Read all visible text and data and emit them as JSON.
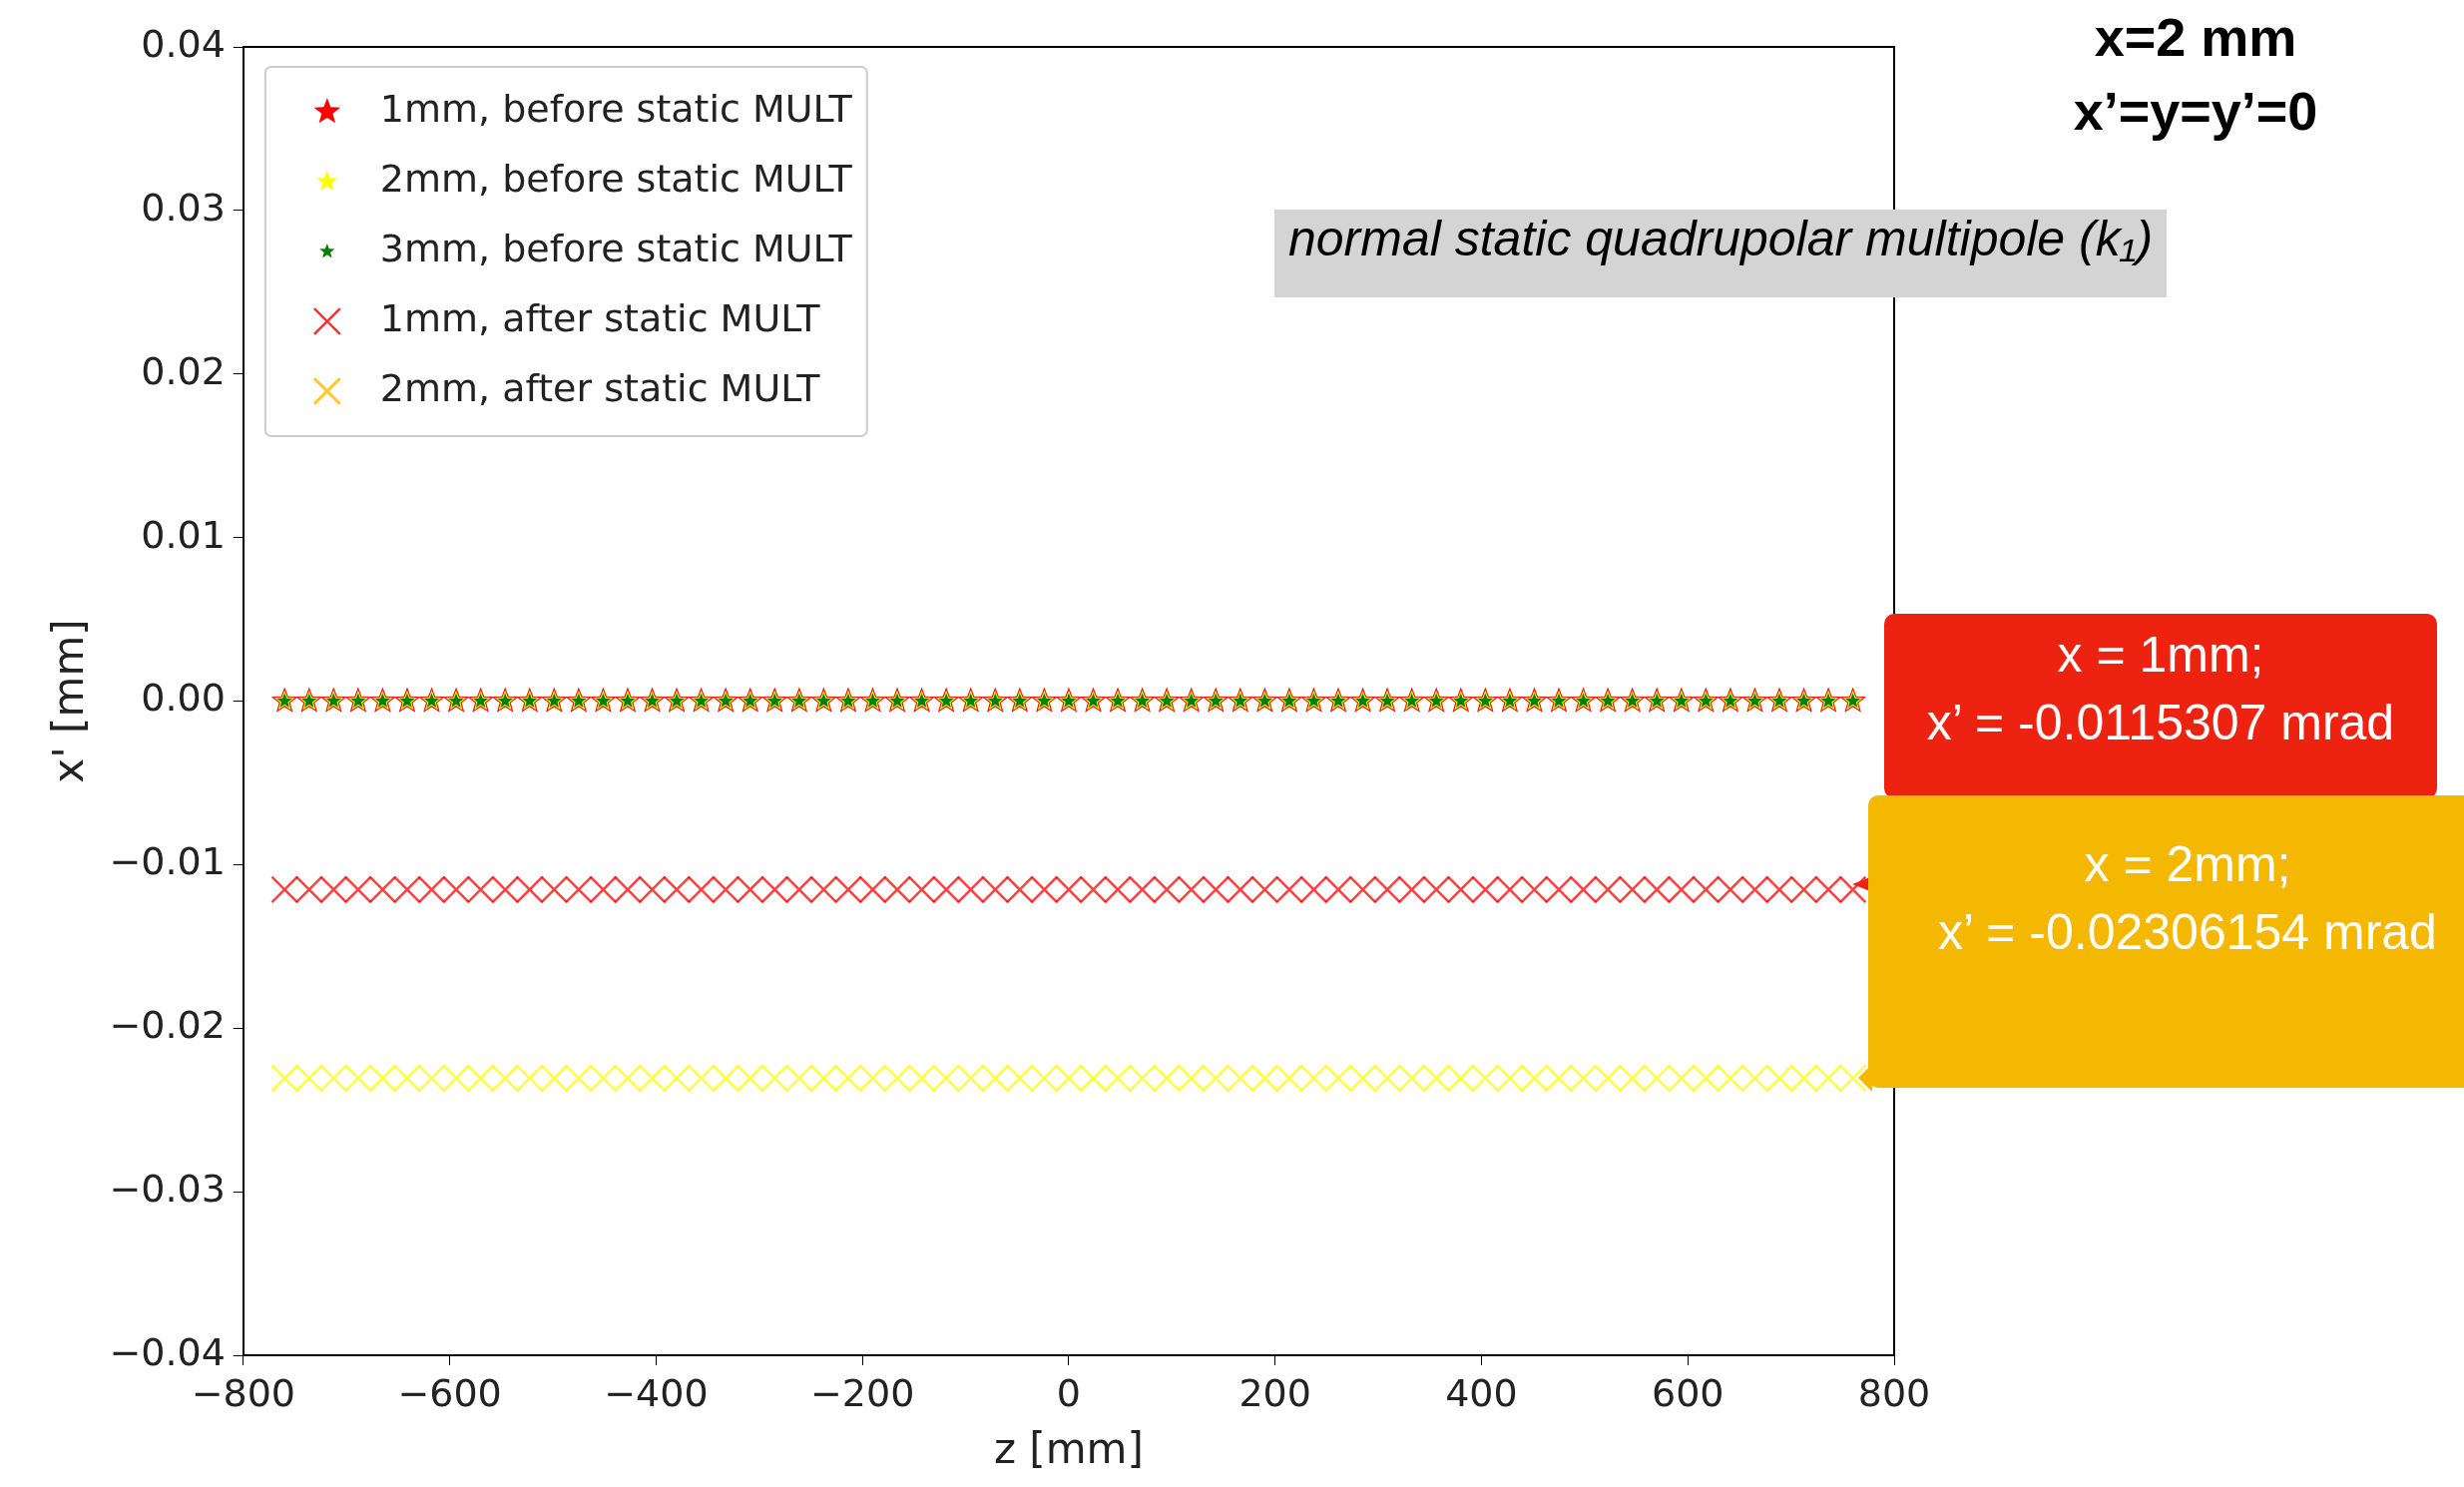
{
  "chart_data": {
    "type": "scatter",
    "xlabel": "z [mm]",
    "ylabel": "x' [mm]",
    "x": [
      -760,
      -736.25,
      -712.5,
      -688.75,
      -665,
      -641.25,
      -617.5,
      -593.75,
      -570,
      -546.25,
      -522.5,
      -498.75,
      -475,
      -451.25,
      -427.5,
      -403.75,
      -380,
      -356.25,
      -332.5,
      -308.75,
      -285,
      -261.25,
      -237.5,
      -213.75,
      -190,
      -166.25,
      -142.5,
      -118.75,
      -95,
      -71.25,
      -47.5,
      -23.75,
      0,
      23.75,
      47.5,
      71.25,
      95,
      118.75,
      142.5,
      166.25,
      190,
      213.75,
      237.5,
      261.25,
      285,
      308.75,
      332.5,
      356.25,
      380,
      403.75,
      427.5,
      451.25,
      475,
      498.75,
      522.5,
      546.25,
      570,
      593.75,
      617.5,
      641.25,
      665,
      688.75,
      712.5,
      736.25,
      760
    ],
    "series": [
      {
        "name": "1mm, before static MULT",
        "color": "#ff0000",
        "marker": "star",
        "values": [
          0,
          0,
          0,
          0,
          0,
          0,
          0,
          0,
          0,
          0,
          0,
          0,
          0,
          0,
          0,
          0,
          0,
          0,
          0,
          0,
          0,
          0,
          0,
          0,
          0,
          0,
          0,
          0,
          0,
          0,
          0,
          0,
          0,
          0,
          0,
          0,
          0,
          0,
          0,
          0,
          0,
          0,
          0,
          0,
          0,
          0,
          0,
          0,
          0,
          0,
          0,
          0,
          0,
          0,
          0,
          0,
          0,
          0,
          0,
          0,
          0,
          0,
          0,
          0,
          0
        ]
      },
      {
        "name": "2mm, before static MULT",
        "color": "#ffff00",
        "marker": "star",
        "values": [
          0,
          0,
          0,
          0,
          0,
          0,
          0,
          0,
          0,
          0,
          0,
          0,
          0,
          0,
          0,
          0,
          0,
          0,
          0,
          0,
          0,
          0,
          0,
          0,
          0,
          0,
          0,
          0,
          0,
          0,
          0,
          0,
          0,
          0,
          0,
          0,
          0,
          0,
          0,
          0,
          0,
          0,
          0,
          0,
          0,
          0,
          0,
          0,
          0,
          0,
          0,
          0,
          0,
          0,
          0,
          0,
          0,
          0,
          0,
          0,
          0,
          0,
          0,
          0,
          0
        ]
      },
      {
        "name": "3mm, before static MULT",
        "color": "#008000",
        "marker": "star",
        "values": [
          0,
          0,
          0,
          0,
          0,
          0,
          0,
          0,
          0,
          0,
          0,
          0,
          0,
          0,
          0,
          0,
          0,
          0,
          0,
          0,
          0,
          0,
          0,
          0,
          0,
          0,
          0,
          0,
          0,
          0,
          0,
          0,
          0,
          0,
          0,
          0,
          0,
          0,
          0,
          0,
          0,
          0,
          0,
          0,
          0,
          0,
          0,
          0,
          0,
          0,
          0,
          0,
          0,
          0,
          0,
          0,
          0,
          0,
          0,
          0,
          0,
          0,
          0,
          0,
          0
        ]
      },
      {
        "name": "1mm, after static MULT",
        "color": "#ff0000",
        "marker": "cross",
        "values": [
          -0.0115307,
          -0.0115307,
          -0.0115307,
          -0.0115307,
          -0.0115307,
          -0.0115307,
          -0.0115307,
          -0.0115307,
          -0.0115307,
          -0.0115307,
          -0.0115307,
          -0.0115307,
          -0.0115307,
          -0.0115307,
          -0.0115307,
          -0.0115307,
          -0.0115307,
          -0.0115307,
          -0.0115307,
          -0.0115307,
          -0.0115307,
          -0.0115307,
          -0.0115307,
          -0.0115307,
          -0.0115307,
          -0.0115307,
          -0.0115307,
          -0.0115307,
          -0.0115307,
          -0.0115307,
          -0.0115307,
          -0.0115307,
          -0.0115307,
          -0.0115307,
          -0.0115307,
          -0.0115307,
          -0.0115307,
          -0.0115307,
          -0.0115307,
          -0.0115307,
          -0.0115307,
          -0.0115307,
          -0.0115307,
          -0.0115307,
          -0.0115307,
          -0.0115307,
          -0.0115307,
          -0.0115307,
          -0.0115307,
          -0.0115307,
          -0.0115307,
          -0.0115307,
          -0.0115307,
          -0.0115307,
          -0.0115307,
          -0.0115307,
          -0.0115307,
          -0.0115307,
          -0.0115307,
          -0.0115307,
          -0.0115307,
          -0.0115307,
          -0.0115307,
          -0.0115307,
          -0.0115307
        ]
      },
      {
        "name": "2mm, after static MULT",
        "color": "#ffff00",
        "marker": "cross",
        "values": [
          -0.02306154,
          -0.02306154,
          -0.02306154,
          -0.02306154,
          -0.02306154,
          -0.02306154,
          -0.02306154,
          -0.02306154,
          -0.02306154,
          -0.02306154,
          -0.02306154,
          -0.02306154,
          -0.02306154,
          -0.02306154,
          -0.02306154,
          -0.02306154,
          -0.02306154,
          -0.02306154,
          -0.02306154,
          -0.02306154,
          -0.02306154,
          -0.02306154,
          -0.02306154,
          -0.02306154,
          -0.02306154,
          -0.02306154,
          -0.02306154,
          -0.02306154,
          -0.02306154,
          -0.02306154,
          -0.02306154,
          -0.02306154,
          -0.02306154,
          -0.02306154,
          -0.02306154,
          -0.02306154,
          -0.02306154,
          -0.02306154,
          -0.02306154,
          -0.02306154,
          -0.02306154,
          -0.02306154,
          -0.02306154,
          -0.02306154,
          -0.02306154,
          -0.02306154,
          -0.02306154,
          -0.02306154,
          -0.02306154,
          -0.02306154,
          -0.02306154,
          -0.02306154,
          -0.02306154,
          -0.02306154,
          -0.02306154,
          -0.02306154,
          -0.02306154,
          -0.02306154,
          -0.02306154,
          -0.02306154,
          -0.02306154,
          -0.02306154,
          -0.02306154,
          -0.02306154,
          -0.02306154
        ]
      }
    ],
    "xlim": [
      -800,
      800
    ],
    "xticks": [
      {
        "value": -800,
        "label": "−800"
      },
      {
        "value": -600,
        "label": "−600"
      },
      {
        "value": -400,
        "label": "−400"
      },
      {
        "value": -200,
        "label": "−200"
      },
      0,
      200,
      400,
      600,
      800
    ],
    "ylim": [
      -0.04,
      0.04
    ],
    "yticks": [
      {
        "value": -0.04,
        "label": "−0.04"
      },
      {
        "value": -0.03,
        "label": "−0.03"
      },
      {
        "value": -0.02,
        "label": "−0.02"
      },
      {
        "value": -0.01,
        "label": "−0.01"
      },
      {
        "value": 0,
        "label": "0.00"
      },
      {
        "value": 0.01,
        "label": "0.01"
      },
      {
        "value": 0.02,
        "label": "0.02"
      },
      {
        "value": 0.03,
        "label": "0.03"
      },
      {
        "value": 0.04,
        "label": "0.04"
      }
    ],
    "grid": false,
    "legend": "top left",
    "annotations": [
      "x=2 mm\nx’=y=y’=0",
      "normal static quadrupolar multipole (k₁)",
      "x = 1mm;\nx’ = -0.0115307 mrad",
      "x = 2mm;\nx’ = -0.02306154 mrad"
    ]
  }
}
